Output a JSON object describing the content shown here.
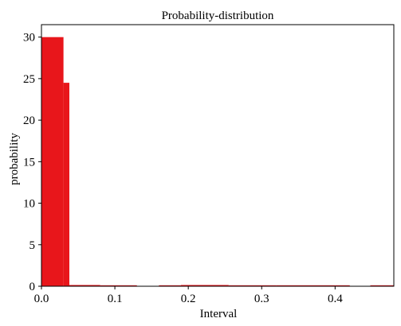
{
  "chart_data": {
    "type": "bar",
    "title": "Probability-distribution",
    "xlabel": "Interval",
    "ylabel": "probability",
    "xlim": [
      0.0,
      0.48
    ],
    "ylim": [
      0,
      31.5
    ],
    "xticks": [
      0.0,
      0.1,
      0.2,
      0.3,
      0.4
    ],
    "xtick_labels": [
      "0.0",
      "0.1",
      "0.2",
      "0.3",
      "0.4"
    ],
    "yticks": [
      0,
      5,
      10,
      15,
      20,
      25,
      30
    ],
    "ytick_labels": [
      "0",
      "5",
      "10",
      "15",
      "20",
      "25",
      "30"
    ],
    "bar_color": "#e8161b",
    "grid": false,
    "bars": [
      {
        "x0": 0.0,
        "x1": 0.03,
        "value": 30.0
      },
      {
        "x0": 0.03,
        "x1": 0.038,
        "value": 24.5
      },
      {
        "x0": 0.038,
        "x1": 0.08,
        "value": 0.15
      },
      {
        "x0": 0.08,
        "x1": 0.13,
        "value": 0.1
      },
      {
        "x0": 0.16,
        "x1": 0.19,
        "value": 0.1
      },
      {
        "x0": 0.19,
        "x1": 0.255,
        "value": 0.15
      },
      {
        "x0": 0.255,
        "x1": 0.31,
        "value": 0.1
      },
      {
        "x0": 0.31,
        "x1": 0.32,
        "value": 0.08
      },
      {
        "x0": 0.32,
        "x1": 0.4,
        "value": 0.1
      },
      {
        "x0": 0.4,
        "x1": 0.42,
        "value": 0.1
      },
      {
        "x0": 0.448,
        "x1": 0.48,
        "value": 0.1
      }
    ]
  }
}
